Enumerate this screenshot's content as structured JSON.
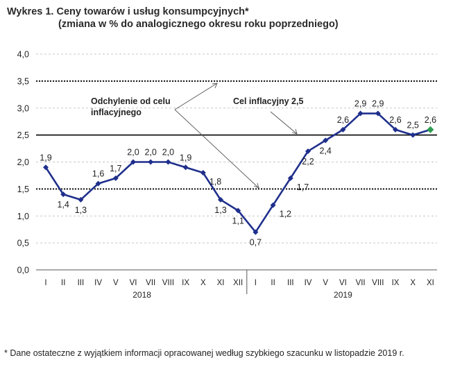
{
  "title": {
    "line1": "Wykres 1. Ceny towarów i usług konsumpcyjnych*",
    "line2": "(zmiana w % do analogicznego okresu roku poprzedniego)"
  },
  "footnote": "* Dane ostateczne z wyjątkiem informacji opracowanej według szybkiego szacunku w listopadzie 2019 r.",
  "chart_data": {
    "type": "line",
    "ylim": [
      0.0,
      4.0
    ],
    "yticks": [
      "0,0",
      "0,5",
      "1,0",
      "1,5",
      "2,0",
      "2,5",
      "3,0",
      "3,5",
      "4,0"
    ],
    "categories": [
      "I",
      "II",
      "III",
      "IV",
      "V",
      "VI",
      "VII",
      "VIII",
      "IX",
      "X",
      "XI",
      "XII",
      "I",
      "II",
      "III",
      "IV",
      "V",
      "VI",
      "VII",
      "VIII",
      "IX",
      "X",
      "XI"
    ],
    "years": [
      {
        "label": "2018",
        "start": 0,
        "end": 11
      },
      {
        "label": "2019",
        "start": 12,
        "end": 22
      }
    ],
    "series": [
      {
        "values": [
          1.9,
          1.4,
          1.3,
          1.6,
          1.7,
          2.0,
          2.0,
          2.0,
          1.9,
          1.8,
          1.3,
          1.1,
          0.7,
          1.2,
          1.7,
          2.2,
          2.4,
          2.6,
          2.9,
          2.9,
          2.6,
          2.5,
          2.6
        ],
        "labels": [
          "1,9",
          "1,4",
          "1,3",
          "1,6",
          "1,7",
          "2,0",
          "2,0",
          "2,0",
          "1,9",
          "1,8",
          "1,3",
          "1,1",
          "0,7",
          "1,2",
          "1,7",
          "2,2",
          "2,4",
          "2,6",
          "2,9",
          "2,9",
          "2,6",
          "2,5",
          "2,6"
        ],
        "label_pos": [
          "above",
          "below",
          "below",
          "above",
          "above",
          "above",
          "above",
          "above",
          "above",
          "right",
          "below",
          "below",
          "below",
          "right",
          "right",
          "below",
          "below",
          "above",
          "above",
          "above",
          "above",
          "above",
          "above"
        ],
        "color": "#1f2f8c",
        "last_point_color": "#2e9e4f"
      }
    ],
    "reference_lines": [
      {
        "value": 2.5,
        "style": "solid"
      },
      {
        "value": 3.5,
        "style": "dotted"
      },
      {
        "value": 1.5,
        "style": "dotted"
      }
    ],
    "annotations": [
      {
        "id": "tolerance",
        "text": [
          "Odchylenie od celu",
          "inflacyjnego"
        ]
      },
      {
        "id": "target",
        "text": [
          "Cel inflacyjny 2,5"
        ]
      }
    ],
    "grid": "dashed-horizontal"
  }
}
